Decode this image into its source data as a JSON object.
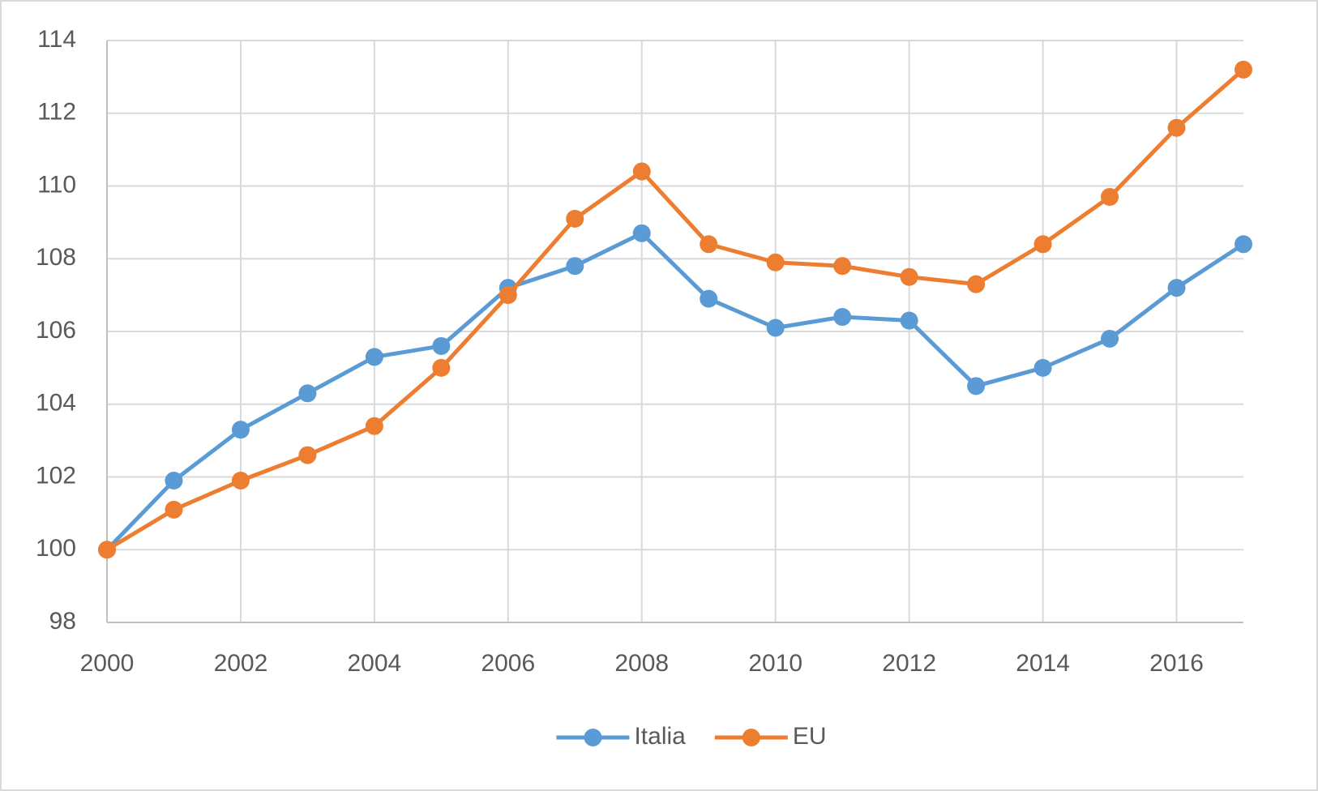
{
  "chart_data": {
    "type": "line",
    "x": [
      2000,
      2001,
      2002,
      2003,
      2004,
      2005,
      2006,
      2007,
      2008,
      2009,
      2010,
      2011,
      2012,
      2013,
      2014,
      2015,
      2016,
      2017
    ],
    "xlim": [
      2000,
      2017
    ],
    "xticks": [
      2000,
      2002,
      2004,
      2006,
      2008,
      2010,
      2012,
      2014,
      2016
    ],
    "ylim": [
      98,
      114
    ],
    "yticks": [
      98,
      100,
      102,
      104,
      106,
      108,
      110,
      112,
      114
    ],
    "grid": true,
    "legend": "bottom",
    "series": [
      {
        "name": "Italia",
        "color": "#5b9bd5",
        "values": [
          100,
          101.9,
          103.3,
          104.3,
          105.3,
          105.6,
          107.2,
          107.8,
          108.7,
          106.9,
          106.1,
          106.4,
          106.3,
          104.5,
          105.0,
          105.8,
          107.2,
          108.4
        ]
      },
      {
        "name": "EU",
        "color": "#ed7d31",
        "values": [
          100,
          101.1,
          101.9,
          102.6,
          103.4,
          105.0,
          107.0,
          109.1,
          110.4,
          108.4,
          107.9,
          107.8,
          107.5,
          107.3,
          108.4,
          109.7,
          111.6,
          113.2
        ]
      }
    ]
  }
}
